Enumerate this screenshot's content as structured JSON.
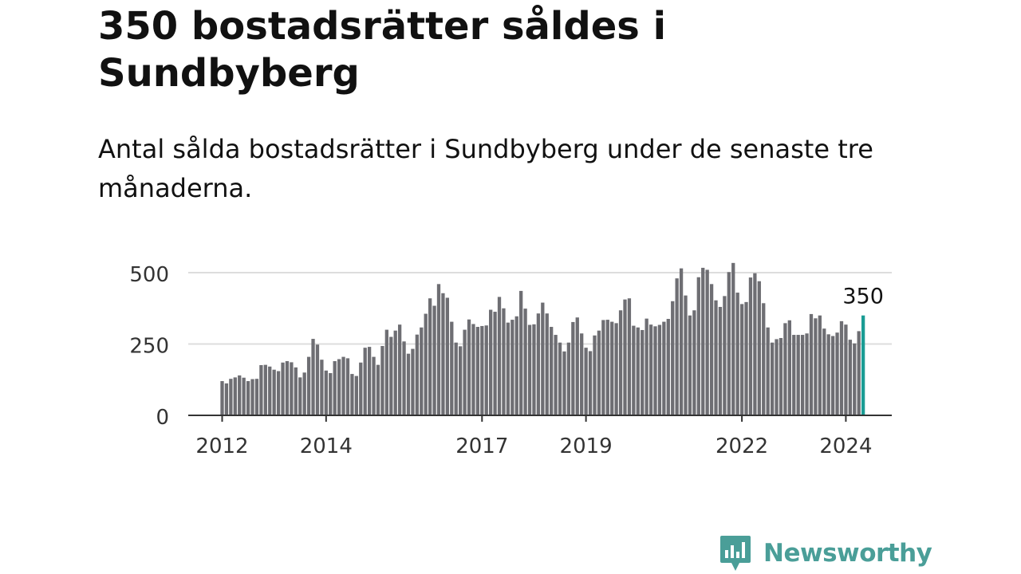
{
  "header": {
    "title": "350 bostadsrätter såldes i Sundbyberg",
    "subtitle": "Antal sålda bostadsrätter i Sundbyberg under de senaste tre månaderna."
  },
  "brand": {
    "name": "Newsworthy"
  },
  "colors": {
    "bar": "#6e6e73",
    "highlight": "#1a9c94",
    "grid": "#dddddd",
    "axis": "#333333",
    "brand": "#4a9e98"
  },
  "chart_data": {
    "type": "bar",
    "title": "",
    "xlabel": "",
    "ylabel": "",
    "ylim": [
      0,
      550
    ],
    "yticks": [
      "0",
      "250",
      "500"
    ],
    "ytick_values": [
      0,
      250,
      500
    ],
    "x_start": "2012-01",
    "xtick_labels": [
      "2012",
      "2014",
      "2017",
      "2019",
      "2022",
      "2024"
    ],
    "xtick_months": [
      "2012-01",
      "2014-01",
      "2017-01",
      "2019-01",
      "2022-01",
      "2024-01"
    ],
    "highlight_label": "350",
    "highlight_value": 350,
    "values": [
      120,
      112,
      128,
      133,
      140,
      132,
      120,
      127,
      128,
      176,
      177,
      171,
      160,
      155,
      185,
      190,
      186,
      168,
      133,
      150,
      205,
      268,
      248,
      195,
      157,
      148,
      190,
      197,
      205,
      200,
      145,
      138,
      185,
      237,
      240,
      205,
      177,
      243,
      300,
      275,
      297,
      318,
      259,
      216,
      233,
      283,
      308,
      356,
      410,
      384,
      460,
      428,
      412,
      328,
      255,
      242,
      300,
      336,
      320,
      310,
      313,
      315,
      370,
      363,
      415,
      375,
      325,
      335,
      347,
      436,
      374,
      317,
      319,
      357,
      395,
      357,
      310,
      282,
      255,
      224,
      255,
      327,
      343,
      287,
      237,
      225,
      280,
      297,
      334,
      335,
      328,
      323,
      368,
      406,
      410,
      314,
      308,
      299,
      339,
      318,
      312,
      317,
      328,
      338,
      400,
      480,
      515,
      420,
      350,
      368,
      484,
      517,
      510,
      460,
      403,
      380,
      418,
      502,
      534,
      430,
      390,
      397,
      483,
      498,
      470,
      393,
      308,
      255,
      267,
      271,
      323,
      333,
      282,
      282,
      282,
      287,
      355,
      340,
      350,
      304,
      284,
      278,
      290,
      330,
      318,
      265,
      252,
      295,
      350
    ]
  }
}
